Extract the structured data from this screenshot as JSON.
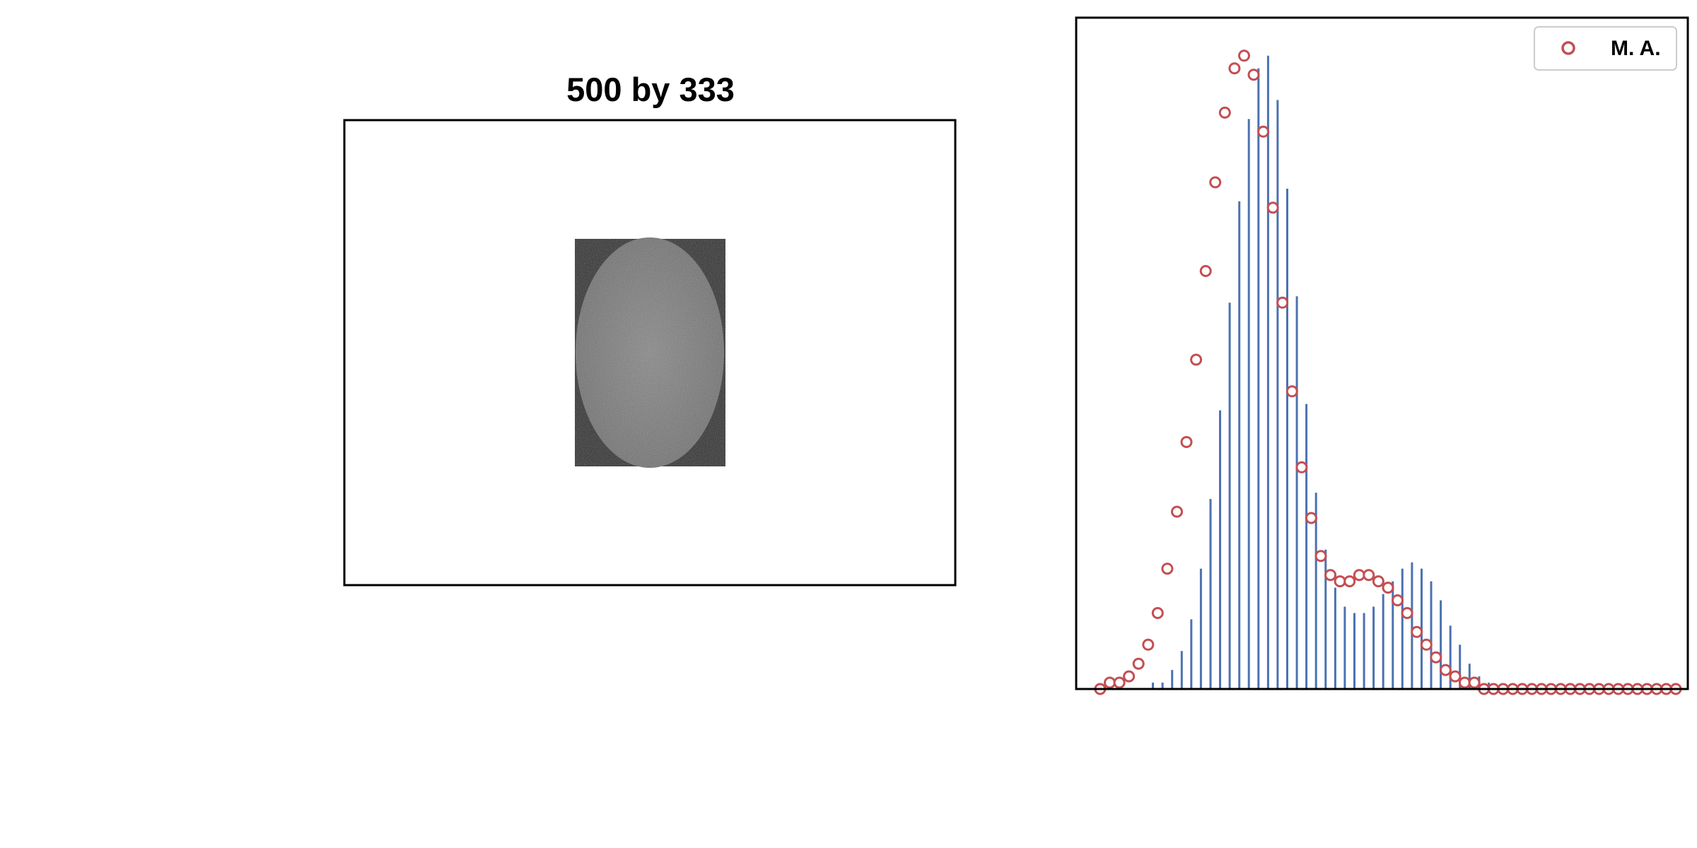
{
  "left_panel": {
    "title": "500 by 333",
    "image_description_colors": {
      "background": "#2b2b2b",
      "ellipse": "#7d7d7d"
    }
  },
  "chart_data": {
    "type": "bar",
    "xlabel": "",
    "ylabel": "",
    "xlim": [
      0,
      255
    ],
    "ylim": [
      0,
      1.06
    ],
    "ticks_visible": false,
    "grid": false,
    "legend": {
      "entries": [
        "M. A."
      ],
      "placement": "top-right"
    },
    "colors": {
      "bars": "#4c72b0",
      "markers": "#c44e52"
    },
    "series": [
      {
        "name": "",
        "kind": "histogram-bars",
        "bar_centers": [
          20,
          24,
          28,
          32,
          36,
          40,
          44,
          48,
          52,
          56,
          60,
          64,
          68,
          72,
          76,
          80,
          84,
          88,
          92,
          96,
          100,
          104,
          108,
          112,
          116,
          120,
          124,
          128,
          132,
          136,
          140,
          144,
          148,
          152,
          156,
          160,
          164,
          168,
          172,
          176,
          180,
          184,
          188,
          192,
          196,
          200,
          204,
          208,
          212,
          216,
          220,
          224,
          228,
          232,
          236,
          240,
          244,
          248,
          252
        ],
        "values": [
          0.0,
          0.0,
          0.0,
          0.01,
          0.01,
          0.03,
          0.06,
          0.11,
          0.19,
          0.3,
          0.44,
          0.61,
          0.77,
          0.9,
          0.98,
          1.0,
          0.93,
          0.79,
          0.62,
          0.45,
          0.31,
          0.22,
          0.16,
          0.13,
          0.12,
          0.12,
          0.13,
          0.15,
          0.17,
          0.19,
          0.2,
          0.19,
          0.17,
          0.14,
          0.1,
          0.07,
          0.04,
          0.02,
          0.01,
          0.0,
          0.0,
          0.0,
          0.0,
          0.0,
          0.0,
          0.0,
          0.0,
          0.0,
          0.0,
          0.0,
          0.0,
          0.0,
          0.0,
          0.0,
          0.0,
          0.0,
          0.0,
          0.0,
          0.0
        ]
      },
      {
        "name": "M. A.",
        "kind": "moving-average-markers",
        "x": [
          10,
          14,
          18,
          22,
          26,
          30,
          34,
          38,
          42,
          46,
          50,
          54,
          58,
          62,
          66,
          70,
          74,
          78,
          82,
          86,
          90,
          94,
          98,
          102,
          106,
          110,
          114,
          118,
          122,
          126,
          130,
          134,
          138,
          142,
          146,
          150,
          154,
          158,
          162,
          166,
          170,
          174,
          178,
          182,
          186,
          190,
          194,
          198,
          202,
          206,
          210,
          214,
          218,
          222,
          226,
          230,
          234,
          238,
          242,
          246,
          250
        ],
        "values": [
          0.0,
          0.01,
          0.01,
          0.02,
          0.04,
          0.07,
          0.12,
          0.19,
          0.28,
          0.39,
          0.52,
          0.66,
          0.8,
          0.91,
          0.98,
          1.0,
          0.97,
          0.88,
          0.76,
          0.61,
          0.47,
          0.35,
          0.27,
          0.21,
          0.18,
          0.17,
          0.17,
          0.18,
          0.18,
          0.17,
          0.16,
          0.14,
          0.12,
          0.09,
          0.07,
          0.05,
          0.03,
          0.02,
          0.01,
          0.01,
          0.0,
          0.0,
          0.0,
          0.0,
          0.0,
          0.0,
          0.0,
          0.0,
          0.0,
          0.0,
          0.0,
          0.0,
          0.0,
          0.0,
          0.0,
          0.0,
          0.0,
          0.0,
          0.0,
          0.0,
          0.0
        ]
      }
    ]
  }
}
